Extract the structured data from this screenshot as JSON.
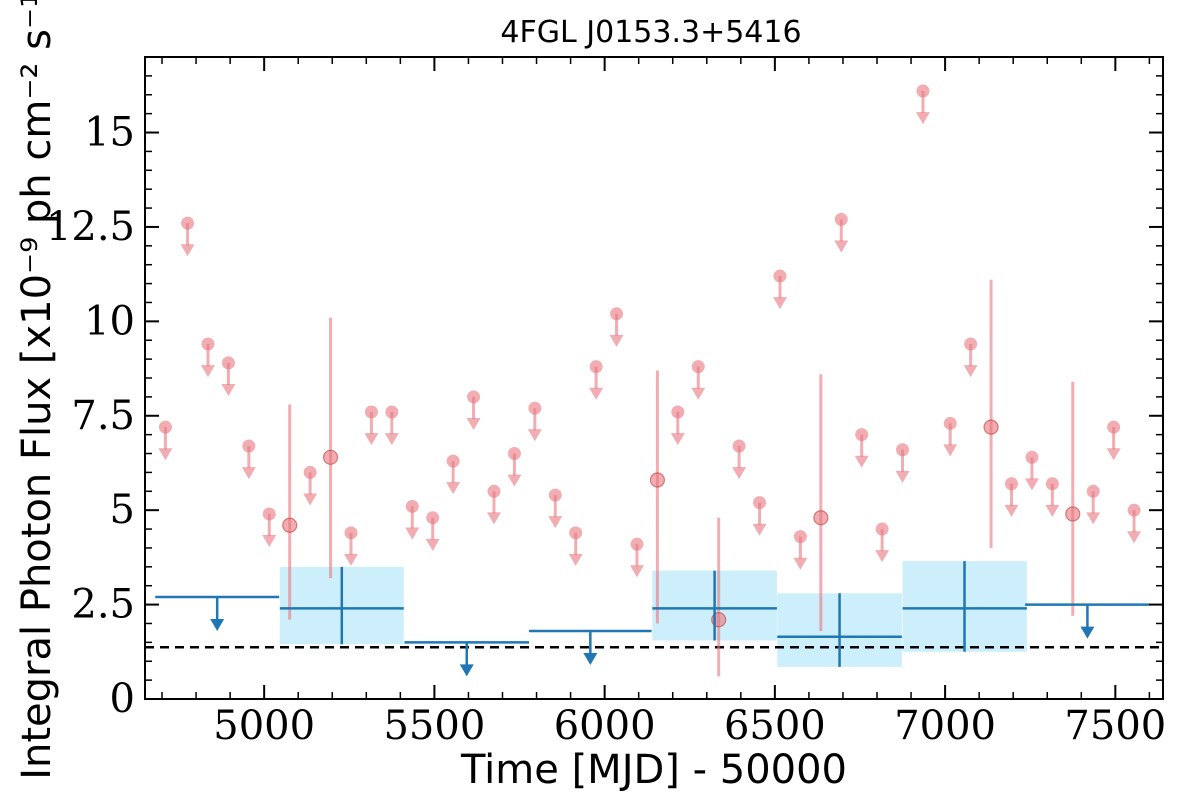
{
  "chart_data": {
    "type": "scatter",
    "title": "4FGL J0153.3+5416",
    "xlabel": "Time [MJD] - 50000",
    "ylabel": "Integral Photon Flux [x10⁻⁹ ph cm⁻² s⁻¹]",
    "xlim": [
      4650,
      7640
    ],
    "ylim": [
      0,
      17
    ],
    "xticks": [
      5000,
      5500,
      6000,
      6500,
      7000,
      7500
    ],
    "xtick_labels": [
      "5000",
      "5500",
      "6000",
      "6500",
      "7000",
      "7500"
    ],
    "yticks": [
      0,
      2.5,
      5,
      7.5,
      10,
      12.5,
      15
    ],
    "ytick_labels": [
      "0",
      "2.5",
      "5",
      "7.5",
      "10",
      "12.5",
      "15"
    ],
    "grid": false,
    "reference_line": {
      "y": 1.37,
      "style": "dashed",
      "color": "#000000"
    },
    "colors": {
      "short_bins": "#e8777f",
      "long_bins": "#1f77b4",
      "long_bins_band": "#cdeefb"
    },
    "short_bins_upper_limits": {
      "x": [
        4710,
        4775,
        4835,
        4895,
        4955,
        5015,
        5135,
        5255,
        5315,
        5375,
        5435,
        5495,
        5555,
        5615,
        5675,
        5735,
        5795,
        5855,
        5915,
        5975,
        6035,
        6095,
        6215,
        6275,
        6395,
        6455,
        6515,
        6575,
        6695,
        6755,
        6815,
        6875,
        6935,
        7015,
        7075,
        7195,
        7255,
        7315,
        7435,
        7495,
        7555
      ],
      "y": [
        7.2,
        12.6,
        9.4,
        8.9,
        6.7,
        4.9,
        6.0,
        4.4,
        7.6,
        7.6,
        5.1,
        4.8,
        6.3,
        8.0,
        5.5,
        6.5,
        7.7,
        5.4,
        4.4,
        8.8,
        10.2,
        4.1,
        7.6,
        8.8,
        6.7,
        5.2,
        11.2,
        4.3,
        12.7,
        7.0,
        4.5,
        6.6,
        16.1,
        7.3,
        9.4,
        5.7,
        6.4,
        5.7,
        5.5,
        7.2,
        5.0
      ]
    },
    "short_bins_detections": {
      "x": [
        5075,
        5195,
        6155,
        6335,
        6635,
        7135,
        7375
      ],
      "y": [
        4.6,
        6.4,
        5.8,
        2.1,
        4.8,
        7.2,
        4.9
      ],
      "y_low": [
        2.1,
        3.2,
        2.0,
        0.6,
        1.8,
        4.0,
        2.2
      ],
      "y_high": [
        7.8,
        10.1,
        8.7,
        4.8,
        8.6,
        11.1,
        8.4
      ]
    },
    "long_bins_upper_limits": {
      "x_start": [
        4680,
        5778,
        7235
      ],
      "x_end": [
        5044,
        6138,
        7600
      ],
      "x_center": [
        4862,
        5958,
        7418
      ],
      "y": [
        2.7,
        1.8,
        2.5
      ]
    },
    "long_bins_lower_limit_arrows": {
      "x_start": [
        5412
      ],
      "x_end": [
        5778
      ],
      "x_center": [
        5595
      ],
      "y": [
        1.5
      ]
    },
    "long_bins_detections": {
      "x_start": [
        5046,
        6140,
        6507,
        6875
      ],
      "x_end": [
        5410,
        6506,
        6873,
        7240
      ],
      "x_center": [
        5228,
        6323,
        6690,
        7057
      ],
      "y": [
        2.4,
        2.4,
        1.65,
        2.4
      ],
      "y_low": [
        1.45,
        1.55,
        0.85,
        1.25
      ],
      "y_high": [
        3.5,
        3.4,
        2.8,
        3.65
      ]
    }
  }
}
